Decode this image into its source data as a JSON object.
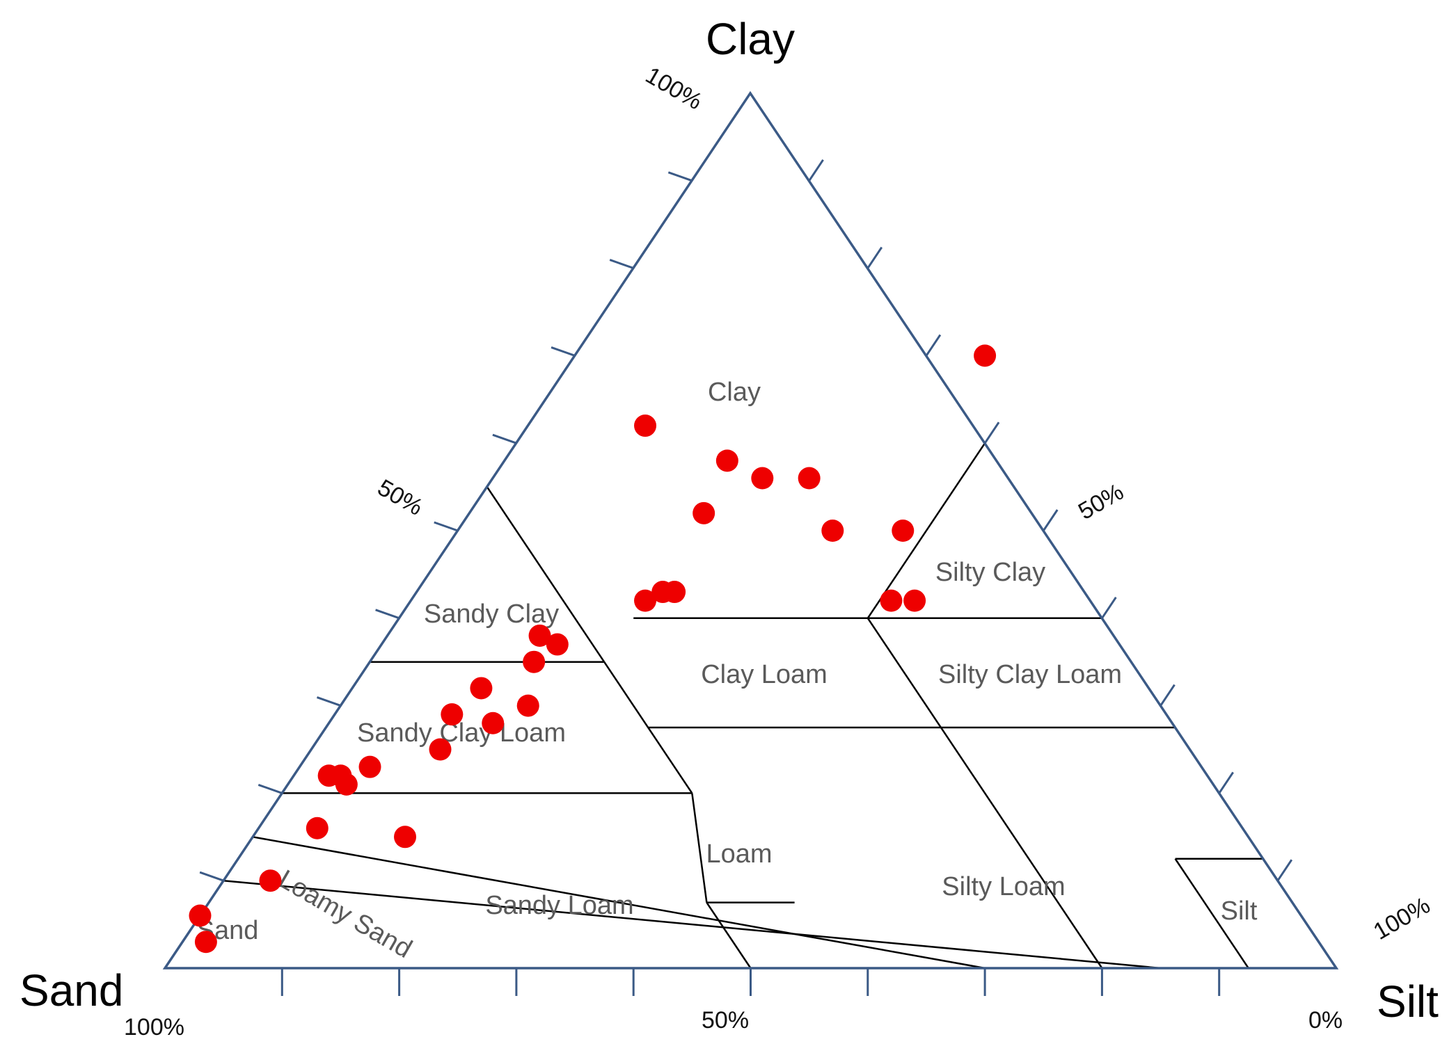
{
  "chart_data": {
    "type": "scatter",
    "subtype": "ternary",
    "corner_labels": {
      "top": "Clay",
      "left": "Sand",
      "right": "Silt"
    },
    "percent_labels": {
      "clay_top": "100%",
      "clay_mid": "50%",
      "silt_right": "100%",
      "silt_mid": "50%",
      "bottom_left": "100%",
      "bottom_mid": "50%",
      "bottom_right": "0%"
    },
    "region_labels": [
      {
        "key": "clay",
        "text": "Clay"
      },
      {
        "key": "sandy_clay",
        "text": "Sandy Clay"
      },
      {
        "key": "silty_clay",
        "text": "Silty Clay"
      },
      {
        "key": "clay_loam",
        "text": "Clay Loam"
      },
      {
        "key": "silty_clay_loam",
        "text": "Silty Clay Loam"
      },
      {
        "key": "sandy_clay_loam",
        "text": "Sandy Clay Loam"
      },
      {
        "key": "loam",
        "text": "Loam"
      },
      {
        "key": "silty_loam",
        "text": "Silty Loam"
      },
      {
        "key": "sandy_loam",
        "text": "Sandy Loam"
      },
      {
        "key": "loamy_sand",
        "text": "Loamy Sand"
      },
      {
        "key": "sand",
        "text": "Sand"
      },
      {
        "key": "silt",
        "text": "Silt"
      }
    ],
    "marker_color": "#ee0000",
    "edge_color": "#3b5a86",
    "points_clay_silt": [
      [
        50,
        38
      ],
      [
        42,
        41
      ],
      [
        42,
        43
      ],
      [
        62,
        10
      ],
      [
        70,
        35
      ],
      [
        58,
        19
      ],
      [
        52,
        20
      ],
      [
        56,
        23
      ],
      [
        3,
        2
      ],
      [
        6,
        0
      ],
      [
        10,
        4
      ],
      [
        15,
        13
      ],
      [
        16,
        5
      ],
      [
        23,
        6
      ],
      [
        22,
        3
      ],
      [
        22,
        4
      ],
      [
        21,
        5
      ],
      [
        25,
        11
      ],
      [
        29,
        10
      ],
      [
        32,
        11
      ],
      [
        35,
        14
      ],
      [
        28,
        14
      ],
      [
        38,
        13
      ],
      [
        37,
        15
      ],
      [
        30,
        16
      ],
      [
        43,
        22
      ],
      [
        42,
        20
      ],
      [
        43,
        21
      ],
      [
        56,
        27
      ],
      [
        50,
        32
      ]
    ]
  }
}
